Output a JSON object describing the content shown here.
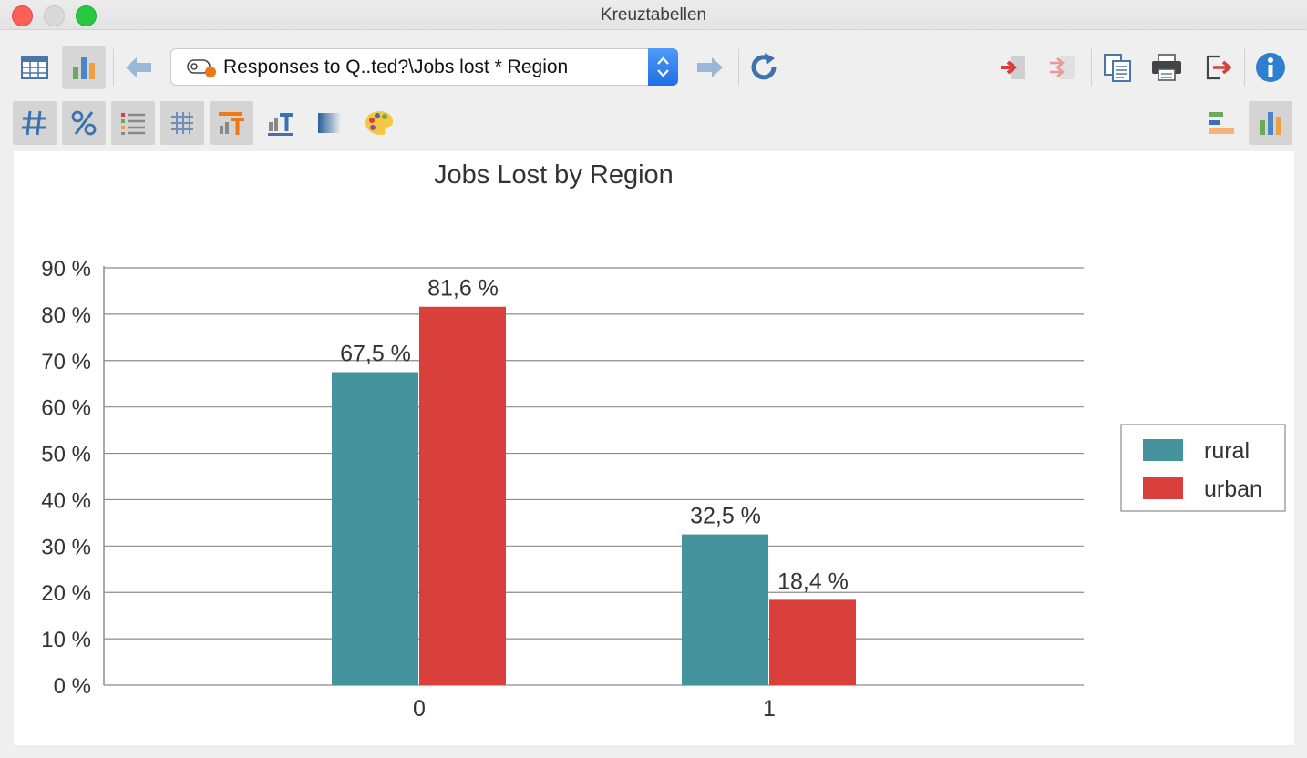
{
  "window": {
    "title": "Kreuztabellen"
  },
  "toolbar": {
    "selector_text": "Responses to Q..ted?\\Jobs lost * Region",
    "icons": [
      "table-icon",
      "bar-chart-icon",
      "back-arrow-icon",
      "forward-arrow-icon",
      "refresh-icon",
      "import-icon",
      "import-disabled-icon",
      "copy-icon",
      "print-icon",
      "export-icon",
      "info-icon"
    ],
    "format_icons": [
      "count-icon",
      "percent-icon",
      "list-icon",
      "grid-icon",
      "label-bars-icon",
      "label-text-icon",
      "gradient-icon",
      "palette-icon",
      "horizontal-bars-icon",
      "vertical-bars-icon"
    ]
  },
  "chart_data": {
    "type": "bar",
    "title": "Jobs Lost by Region",
    "categories": [
      "0",
      "1"
    ],
    "series": [
      {
        "name": "rural",
        "values": [
          67.5,
          32.5
        ],
        "labels": [
          "67,5 %",
          "32,5 %"
        ],
        "color": "#45939c"
      },
      {
        "name": "urban",
        "values": [
          81.6,
          18.4
        ],
        "labels": [
          "81,6 %",
          "18,4 %"
        ],
        "color": "#d9403c"
      }
    ],
    "ylim": [
      0,
      90
    ],
    "yticks": [
      "0 %",
      "10 %",
      "20 %",
      "30 %",
      "40 %",
      "50 %",
      "60 %",
      "70 %",
      "80 %",
      "90 %"
    ],
    "grid": true,
    "legend": "right"
  }
}
